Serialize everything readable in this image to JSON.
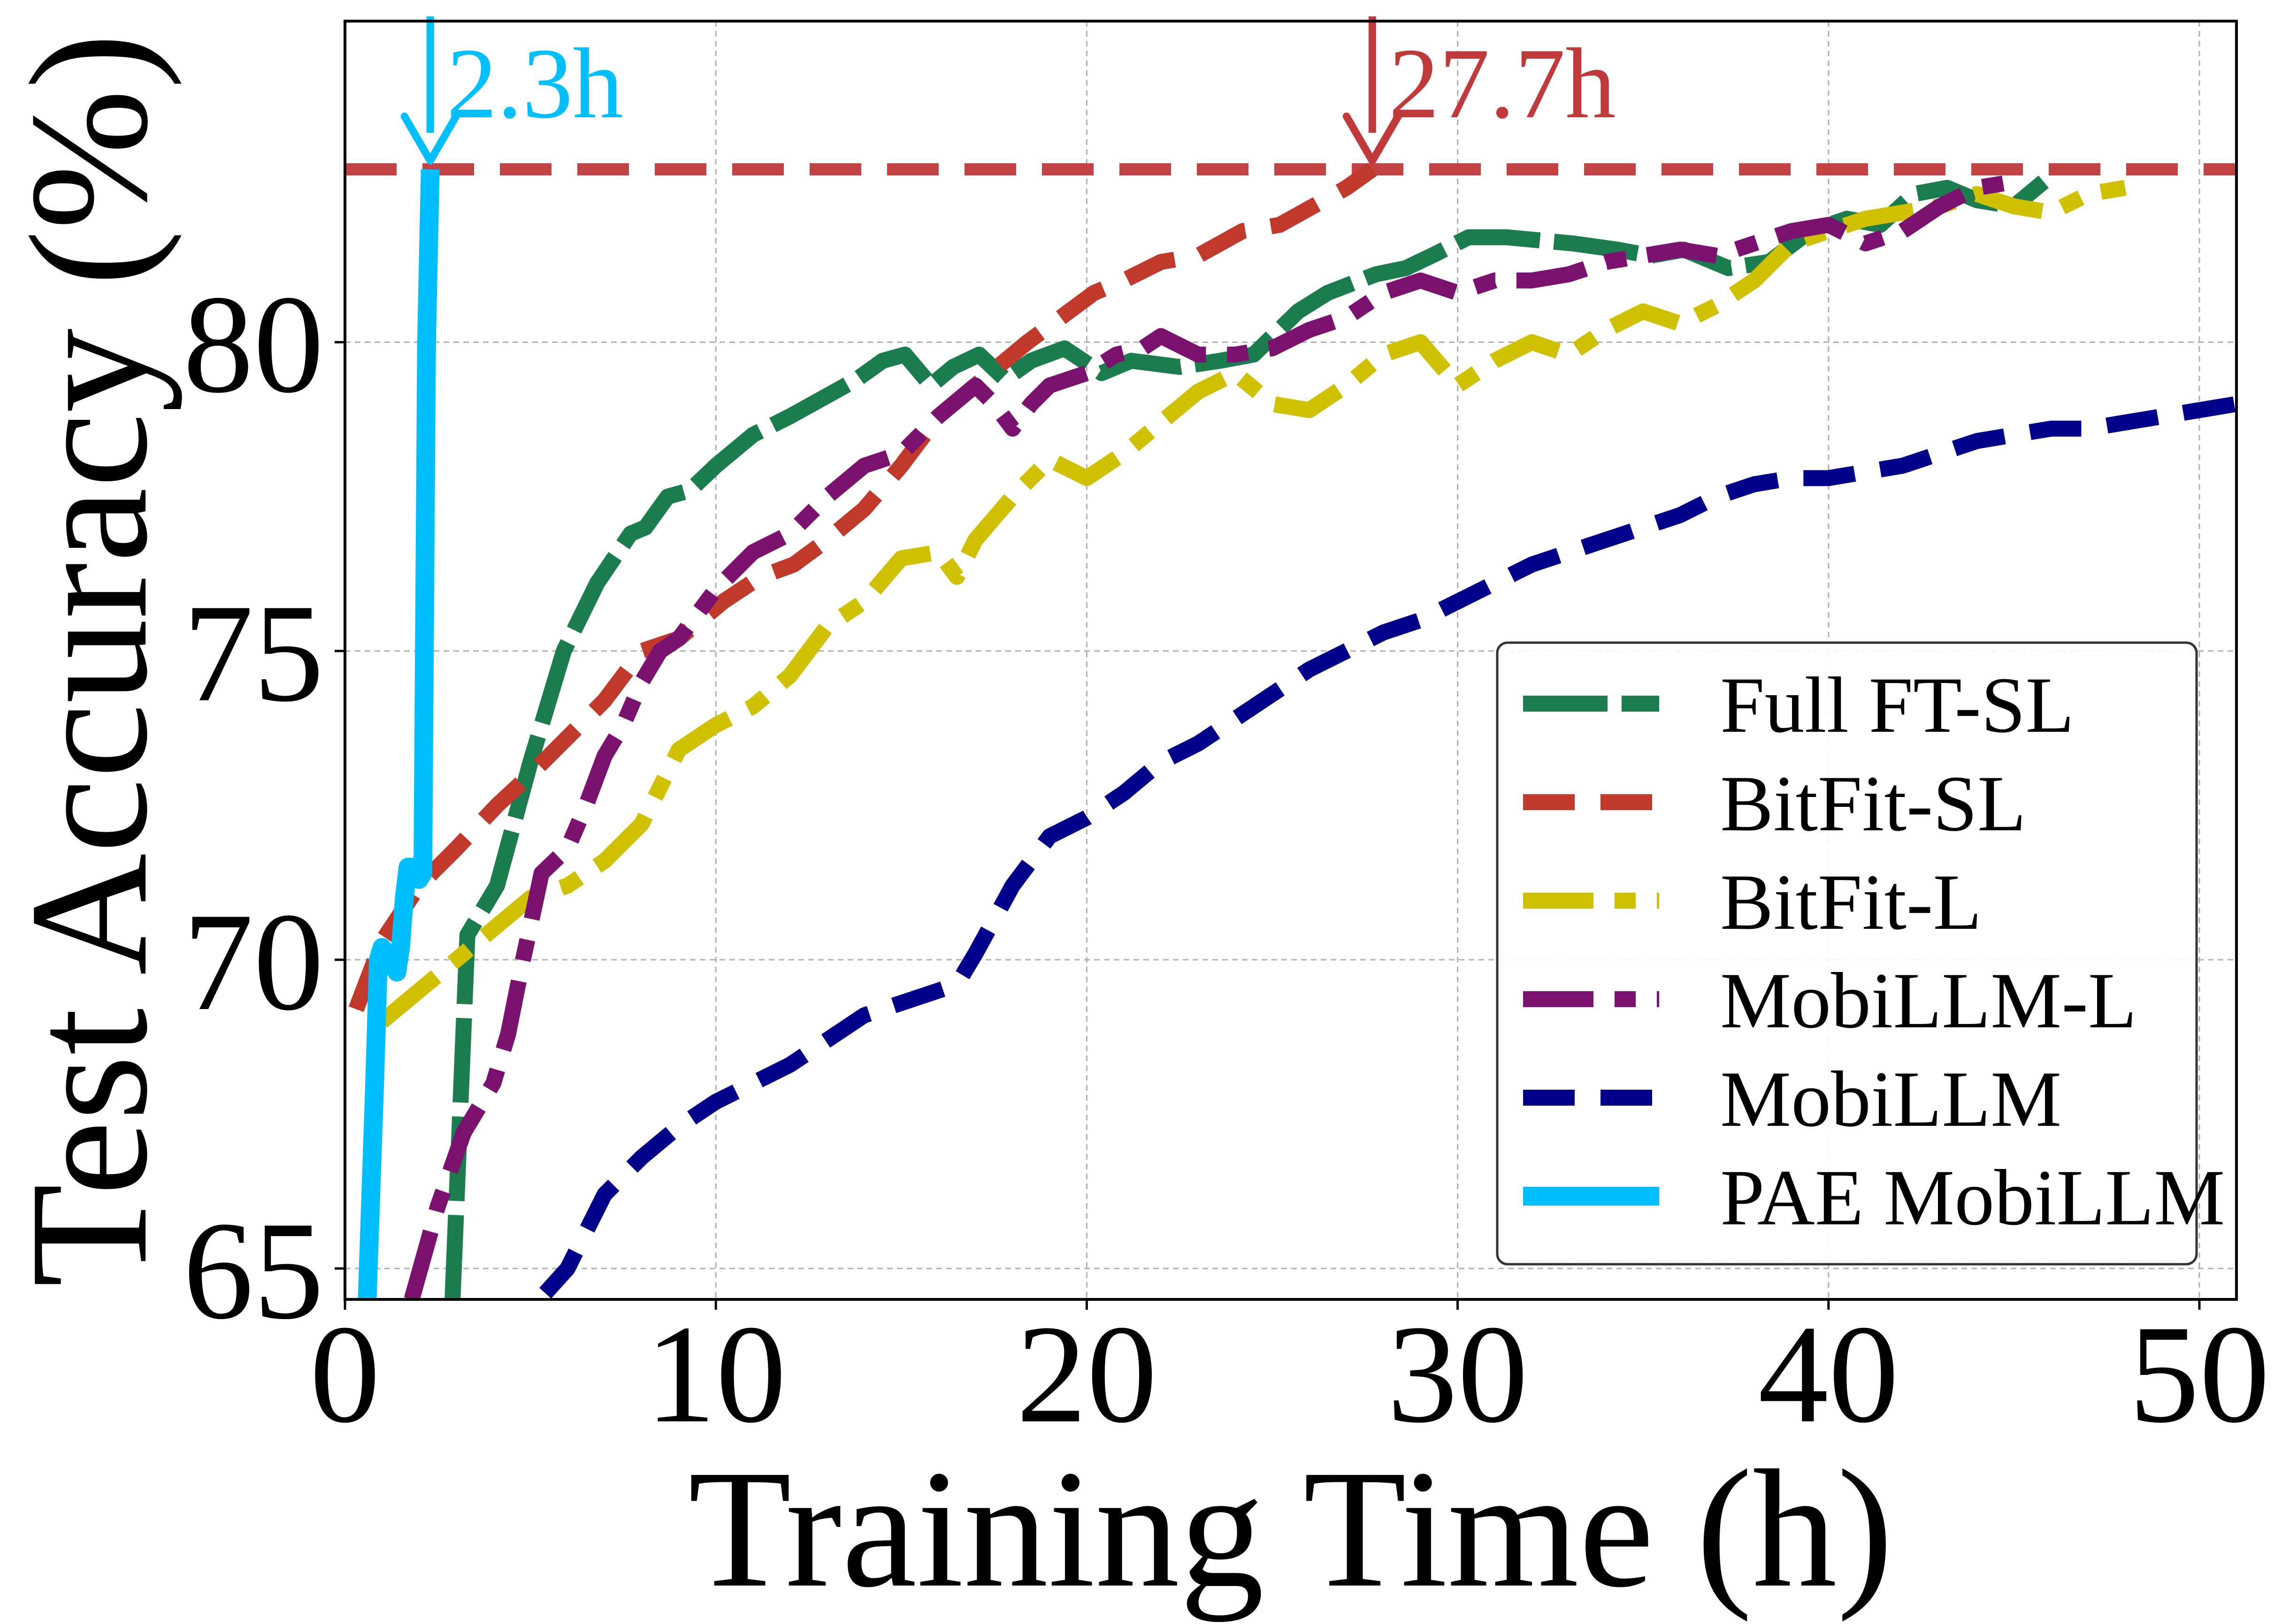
{
  "chart_data": {
    "type": "line",
    "xlabel": "Training Time (h)",
    "ylabel": "Test Accuracy (%)",
    "xlim": [
      0,
      51
    ],
    "ylim": [
      64.5,
      85.2
    ],
    "xticks": [
      0,
      10,
      20,
      30,
      40,
      50
    ],
    "yticks": [
      65,
      70,
      75,
      80
    ],
    "grid": true,
    "legend_position": "lower-right",
    "reference_line": {
      "y": 82.8,
      "color": "#c0393b",
      "style": "dashed"
    },
    "annotations": [
      {
        "text": "2.3h",
        "x": 2.3,
        "color": "#00bfff"
      },
      {
        "text": "27.7h",
        "x": 27.7,
        "color": "#c0393b"
      }
    ],
    "series": [
      {
        "name": "Full FT-SL",
        "color": "#1b7c4e",
        "style": "long-dash",
        "x": [
          2.9,
          3.3,
          4.1,
          5.0,
          5.9,
          6.8,
          7.7,
          8.1,
          8.7,
          9.3,
          10.0,
          11.0,
          12.0,
          12.6,
          13.2,
          13.8,
          14.5,
          15.1,
          15.8,
          16.4,
          17.1,
          17.8,
          18.5,
          19.4,
          20.4,
          21.2,
          22.5,
          23.6,
          24.5,
          25.7,
          26.5,
          27.8,
          28.6,
          29.3,
          30.3,
          31.3,
          33.1,
          34.3,
          35.2,
          36.1,
          37.3,
          38.4,
          39.5,
          40.5,
          41.4,
          42.3,
          43.2,
          44.0,
          45.0,
          45.8
        ],
        "y": [
          64.5,
          70.4,
          71.2,
          73.2,
          75.0,
          76.1,
          76.9,
          77.0,
          77.5,
          77.6,
          78.0,
          78.5,
          78.8,
          79.0,
          79.2,
          79.4,
          79.7,
          79.8,
          79.3,
          79.6,
          79.8,
          79.4,
          79.7,
          79.9,
          79.5,
          79.7,
          79.6,
          79.7,
          79.8,
          80.5,
          80.8,
          81.1,
          81.2,
          81.4,
          81.7,
          81.7,
          81.6,
          81.5,
          81.4,
          81.5,
          81.2,
          81.3,
          81.8,
          82.0,
          81.9,
          82.4,
          82.5,
          82.3,
          82.2,
          82.6
        ]
      },
      {
        "name": "BitFit-SL",
        "color": "#c0392b",
        "style": "dashed",
        "x": [
          0.3,
          1.0,
          2.0,
          3.0,
          4.1,
          5.0,
          6.0,
          7.0,
          8.0,
          9.0,
          10.2,
          11.2,
          12.1,
          13.0,
          14.0,
          15.0,
          16.0,
          17.0,
          17.8,
          18.4,
          19.3,
          20.2,
          21.0,
          22.0,
          23.0,
          24.2,
          25.2,
          26.1,
          27.0,
          27.7
        ],
        "y": [
          69.2,
          70.3,
          71.2,
          71.8,
          72.5,
          73.0,
          73.6,
          74.2,
          75.0,
          75.2,
          75.8,
          76.2,
          76.4,
          76.8,
          77.3,
          78.0,
          78.8,
          79.3,
          79.7,
          80.0,
          80.4,
          80.8,
          81.0,
          81.3,
          81.4,
          81.8,
          81.9,
          82.2,
          82.5,
          82.8
        ]
      },
      {
        "name": "BitFit-L",
        "color": "#cfc000",
        "style": "dash-dot",
        "x": [
          1.0,
          2.0,
          3.0,
          4.0,
          5.0,
          6.0,
          7.0,
          8.0,
          9.0,
          10.0,
          11.0,
          12.0,
          13.0,
          14.0,
          15.0,
          16.0,
          16.5,
          17.0,
          18.0,
          19.0,
          20.0,
          21.0,
          22.0,
          23.0,
          24.0,
          25.0,
          26.0,
          27.0,
          28.0,
          29.0,
          30.0,
          31.0,
          32.0,
          33.0,
          34.0,
          35.0,
          36.0,
          37.0,
          38.0,
          39.0,
          40.0,
          41.0,
          42.0,
          43.0,
          44.0,
          45.0,
          46.0,
          47.0,
          48.0
        ],
        "y": [
          69.0,
          69.5,
          70.0,
          70.5,
          71.0,
          71.2,
          71.6,
          72.2,
          73.4,
          73.8,
          74.1,
          74.6,
          75.4,
          75.8,
          76.5,
          76.6,
          76.2,
          76.8,
          77.5,
          78.1,
          77.8,
          78.2,
          78.7,
          79.2,
          79.5,
          79.0,
          78.9,
          79.3,
          79.8,
          80.0,
          79.3,
          79.7,
          80.0,
          79.8,
          80.2,
          80.5,
          80.3,
          80.6,
          81.0,
          81.6,
          81.8,
          82.0,
          82.1,
          82.2,
          82.4,
          82.2,
          82.1,
          82.4,
          82.5
        ]
      },
      {
        "name": "MobiLLM-L",
        "color": "#7b1270",
        "style": "dash-dot",
        "x": [
          1.8,
          2.5,
          3.2,
          4.0,
          4.4,
          4.8,
          5.3,
          6.0,
          6.5,
          7.0,
          7.5,
          8.0,
          8.5,
          9.0,
          10.0,
          11.0,
          12.0,
          13.0,
          14.0,
          15.0,
          16.0,
          17.0,
          17.5,
          18.0,
          18.5,
          19.0,
          20.0,
          20.8,
          21.5,
          22.0,
          23.0,
          24.0,
          25.0,
          26.0,
          27.0,
          28.0,
          29.0,
          30.0,
          31.0,
          32.0,
          33.0,
          34.0,
          35.0,
          36.0,
          37.0,
          38.0,
          39.0,
          40.0,
          41.0,
          42.0,
          43.0,
          44.0,
          45.0
        ],
        "y": [
          64.5,
          66.0,
          67.2,
          68.0,
          68.8,
          70.0,
          71.4,
          71.8,
          72.5,
          73.3,
          73.8,
          74.5,
          75.0,
          75.2,
          76.0,
          76.6,
          76.9,
          77.5,
          78.0,
          78.2,
          78.8,
          79.3,
          79.0,
          78.6,
          79.0,
          79.3,
          79.5,
          79.8,
          79.9,
          80.1,
          79.8,
          79.8,
          79.9,
          80.2,
          80.4,
          80.8,
          81.0,
          80.8,
          81.0,
          81.0,
          81.1,
          81.3,
          81.4,
          81.5,
          81.4,
          81.6,
          81.8,
          81.9,
          81.6,
          81.8,
          82.2,
          82.5,
          82.6
        ]
      },
      {
        "name": "MobiLLM",
        "color": "#00008b",
        "style": "dashed",
        "x": [
          5.4,
          6.0,
          7.0,
          8.0,
          9.0,
          10.0,
          11.0,
          12.0,
          13.0,
          14.0,
          15.0,
          16.0,
          16.5,
          17.0,
          18.0,
          19.0,
          20.0,
          21.0,
          22.0,
          23.0,
          24.0,
          25.0,
          26.0,
          27.0,
          28.0,
          29.0,
          30.0,
          31.0,
          32.0,
          33.0,
          34.0,
          35.0,
          36.0,
          37.0,
          38.0,
          39.0,
          40.0,
          41.0,
          42.0,
          43.0,
          44.0,
          45.0,
          46.0,
          47.0,
          48.0,
          49.0,
          50.0,
          51.0
        ],
        "y": [
          64.6,
          65.0,
          66.2,
          66.8,
          67.3,
          67.7,
          68.0,
          68.3,
          68.7,
          69.1,
          69.3,
          69.5,
          69.6,
          70.1,
          71.2,
          72.0,
          72.3,
          72.7,
          73.2,
          73.5,
          73.9,
          74.3,
          74.7,
          75.0,
          75.3,
          75.5,
          75.8,
          76.1,
          76.4,
          76.6,
          76.8,
          77.0,
          77.2,
          77.5,
          77.7,
          77.8,
          77.8,
          77.9,
          78.0,
          78.2,
          78.4,
          78.5,
          78.6,
          78.6,
          78.7,
          78.8,
          78.9,
          79.0
        ]
      },
      {
        "name": "PAE MobiLLM",
        "color": "#00bfff",
        "style": "solid",
        "x": [
          0.6,
          0.8,
          0.9,
          1.0,
          1.2,
          1.4,
          1.5,
          1.6,
          1.7,
          1.8,
          2.0,
          2.1,
          2.2,
          2.3
        ],
        "y": [
          64.5,
          68.0,
          70.0,
          70.2,
          70.0,
          69.8,
          70.2,
          71.0,
          71.5,
          71.5,
          71.3,
          71.4,
          80.0,
          82.8
        ]
      }
    ]
  }
}
